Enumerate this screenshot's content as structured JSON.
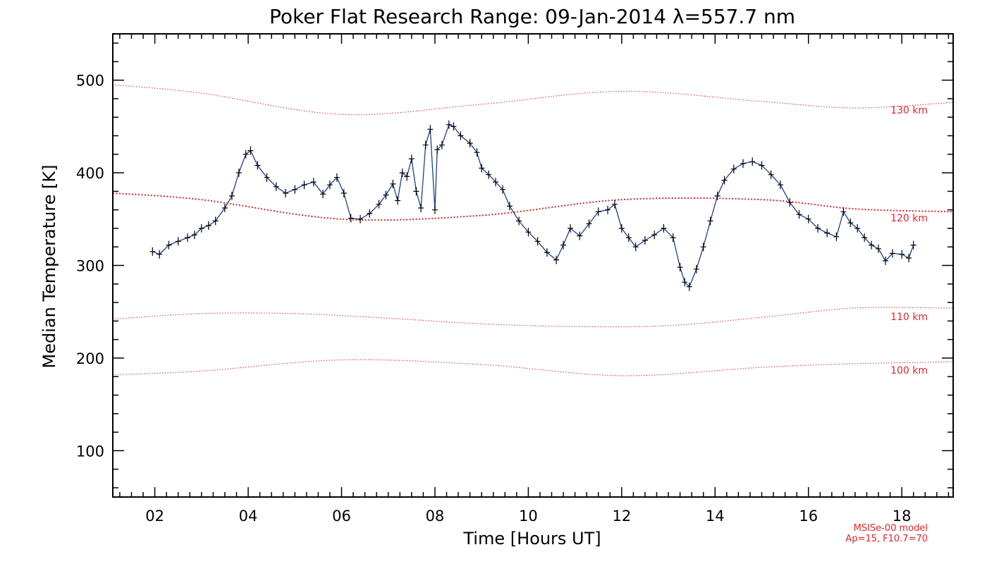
{
  "chart_data": {
    "type": "line",
    "title": "Poker Flat Research Range: 09-Jan-2014 λ=557.7 nm",
    "xlabel": "Time [Hours UT]",
    "ylabel": "Median Temperature [K]",
    "xlim": [
      1.1,
      19.1
    ],
    "ylim": [
      50,
      550
    ],
    "x_ticks": [
      2,
      4,
      6,
      8,
      10,
      12,
      14,
      16,
      18
    ],
    "x_tick_labels": [
      "02",
      "04",
      "06",
      "08",
      "10",
      "12",
      "14",
      "16",
      "18"
    ],
    "y_ticks": [
      100,
      200,
      300,
      400,
      500
    ],
    "y_tick_labels": [
      "100",
      "200",
      "300",
      "400",
      "500"
    ],
    "grid": false,
    "colors": {
      "data_line": "#1f3f8f",
      "markers": "#000000",
      "model": "#e8242a"
    },
    "series": [
      {
        "x": [
          1.95,
          2.1,
          2.3,
          2.5,
          2.7,
          2.85,
          3.0,
          3.15,
          3.3,
          3.5,
          3.65,
          3.8,
          3.95,
          4.05,
          4.2,
          4.4,
          4.6,
          4.8,
          5.0,
          5.2,
          5.4,
          5.6,
          5.75,
          5.9,
          6.05,
          6.2,
          6.4,
          6.6,
          6.8,
          6.95,
          7.1,
          7.2,
          7.3,
          7.4,
          7.5,
          7.6,
          7.7,
          7.8,
          7.9,
          8.0,
          8.05,
          8.15,
          8.3,
          8.4,
          8.55,
          8.75,
          8.9,
          9.0,
          9.15,
          9.3,
          9.45,
          9.6,
          9.8,
          10.0,
          10.2,
          10.4,
          10.6,
          10.75,
          10.9,
          11.1,
          11.3,
          11.5,
          11.7,
          11.85,
          12.0,
          12.15,
          12.3,
          12.5,
          12.7,
          12.9,
          13.1,
          13.25,
          13.35,
          13.45,
          13.6,
          13.75,
          13.9,
          14.05,
          14.2,
          14.4,
          14.6,
          14.8,
          15.0,
          15.2,
          15.4,
          15.6,
          15.8,
          16.0,
          16.2,
          16.4,
          16.6,
          16.75,
          16.9,
          17.05,
          17.2,
          17.35,
          17.5,
          17.65,
          17.8,
          18.0,
          18.15,
          18.25
        ],
        "y": [
          315,
          312,
          322,
          326,
          330,
          333,
          340,
          343,
          348,
          362,
          375,
          400,
          420,
          424,
          408,
          395,
          385,
          378,
          382,
          387,
          390,
          377,
          387,
          395,
          378,
          351,
          350,
          356,
          366,
          376,
          388,
          370,
          400,
          396,
          415,
          380,
          362,
          430,
          447,
          360,
          425,
          430,
          452,
          450,
          440,
          432,
          422,
          405,
          398,
          390,
          382,
          364,
          348,
          336,
          326,
          314,
          306,
          322,
          340,
          332,
          345,
          358,
          360,
          366,
          340,
          330,
          320,
          327,
          333,
          340,
          330,
          298,
          282,
          277,
          296,
          320,
          348,
          375,
          392,
          404,
          410,
          412,
          408,
          398,
          387,
          368,
          355,
          350,
          340,
          335,
          331,
          358,
          346,
          340,
          330,
          322,
          318,
          305,
          313,
          312,
          308,
          322
        ]
      },
      {
        "name": "130 km",
        "x": [
          1.1,
          3.0,
          6.0,
          9.0,
          12.0,
          15.0,
          17.0,
          19.1
        ],
        "y": [
          495,
          486,
          463,
          474,
          488,
          477,
          470,
          476
        ]
      },
      {
        "name": "120 km",
        "x": [
          1.1,
          3.0,
          6.0,
          9.0,
          12.0,
          15.0,
          17.0,
          19.1
        ],
        "y": [
          378,
          371,
          350,
          354,
          371,
          371,
          361,
          358
        ]
      },
      {
        "name": "110 km",
        "x": [
          1.1,
          3.0,
          5.0,
          7.0,
          9.0,
          11.0,
          13.0,
          15.0,
          17.0,
          19.1
        ],
        "y": [
          242,
          248,
          248,
          243,
          237,
          234,
          235,
          244,
          254,
          254
        ]
      },
      {
        "name": "100 km",
        "x": [
          1.1,
          3.0,
          6.0,
          9.0,
          12.0,
          15.0,
          17.0,
          19.1
        ],
        "y": [
          182,
          186,
          198,
          193,
          181,
          190,
          194,
          196
        ]
      }
    ],
    "model_labels": [
      "130 km",
      "120 km",
      "110 km",
      "100 km"
    ],
    "model_note": [
      "MSISe-00 model",
      "Ap=15, F10.7=70"
    ]
  }
}
